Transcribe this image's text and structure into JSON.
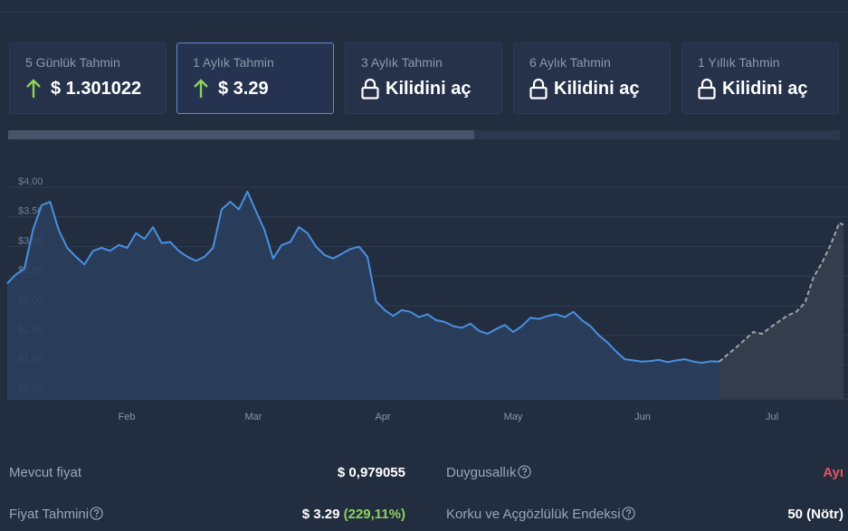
{
  "forecast_cards": [
    {
      "label": "5 Günlük Tahmin",
      "value": "$ 1.301022",
      "icon": "arrow-up-icon"
    },
    {
      "label": "1 Aylık Tahmin",
      "value": "$ 3.29",
      "icon": "arrow-up-icon",
      "active": true
    },
    {
      "label": "3 Aylık Tahmin",
      "value": "Kilidini aç",
      "icon": "lock-icon"
    },
    {
      "label": "6 Aylık Tahmin",
      "value": "Kilidini aç",
      "icon": "lock-icon"
    },
    {
      "label": "1 Yıllık Tahmin",
      "value": "Kilidini aç",
      "icon": "lock-icon"
    }
  ],
  "timeline_progress": 0.56,
  "colors": {
    "background": "#222e40",
    "price_line": "#4a8fe0",
    "forecast_line": "#9aa3ae",
    "up_arrow": "#8ed05c",
    "bearish": "#e4555f",
    "positive": "#8ed05c"
  },
  "chart_data": {
    "type": "line",
    "y_ticks": [
      "$4.00",
      "$3.50",
      "$3.00",
      "$2.50",
      "$2.00",
      "$1.50",
      "$1.00",
      "$0.50"
    ],
    "x_ticks": [
      "Feb",
      "Mar",
      "Apr",
      "May",
      "Jun",
      "Jul"
    ],
    "ylim": [
      0.35,
      4.0
    ],
    "xlim": [
      0,
      195
    ],
    "grid": true,
    "series": [
      {
        "kind": "historical",
        "x": [
          0,
          2,
          4,
          6,
          8,
          10,
          12,
          14,
          16,
          18,
          20,
          22,
          24,
          26,
          28,
          30,
          32,
          34,
          36,
          38,
          40,
          42,
          44,
          46,
          48,
          50,
          52,
          54,
          56,
          58,
          60,
          62,
          64,
          66,
          68,
          70,
          72,
          74,
          76,
          78,
          80,
          82,
          84,
          86,
          88,
          90,
          92,
          94,
          96,
          98,
          100,
          102,
          104,
          106,
          108,
          110,
          112,
          114,
          116,
          118,
          120,
          122,
          124,
          126,
          128,
          130,
          132,
          134,
          136,
          138,
          140,
          142,
          144,
          146,
          148,
          150,
          152,
          154,
          156,
          158,
          160,
          162,
          164,
          166
        ],
        "values": [
          2.3,
          2.45,
          2.55,
          3.2,
          3.62,
          3.68,
          3.2,
          2.9,
          2.75,
          2.62,
          2.85,
          2.9,
          2.85,
          2.95,
          2.9,
          3.15,
          3.05,
          3.25,
          2.98,
          3.0,
          2.85,
          2.75,
          2.68,
          2.75,
          2.9,
          3.55,
          3.68,
          3.55,
          3.85,
          3.52,
          3.2,
          2.72,
          2.95,
          3.0,
          3.25,
          3.15,
          2.92,
          2.78,
          2.72,
          2.8,
          2.88,
          2.92,
          2.75,
          2.0,
          1.85,
          1.75,
          1.85,
          1.82,
          1.73,
          1.78,
          1.68,
          1.65,
          1.58,
          1.55,
          1.62,
          1.5,
          1.45,
          1.53,
          1.6,
          1.48,
          1.58,
          1.72,
          1.7,
          1.75,
          1.78,
          1.73,
          1.82,
          1.68,
          1.58,
          1.42,
          1.3,
          1.15,
          1.02,
          1.0,
          0.98,
          0.99,
          1.01,
          0.97,
          1.0,
          1.02,
          0.98,
          0.96,
          0.985,
          0.979
        ]
      },
      {
        "kind": "forecast",
        "x": [
          166,
          168,
          170,
          172,
          174,
          176,
          178,
          180,
          182,
          184,
          186,
          188,
          190,
          192,
          194,
          195
        ],
        "values": [
          0.979,
          1.1,
          1.22,
          1.35,
          1.48,
          1.45,
          1.56,
          1.66,
          1.76,
          1.82,
          1.97,
          2.4,
          2.65,
          2.95,
          3.32,
          3.29
        ]
      }
    ]
  },
  "stats": {
    "current_price_label": "Mevcut fiyat",
    "current_price_value": "$ 0,979055",
    "forecast_label": "Fiyat Tahmini",
    "forecast_value": "$ 3.29",
    "forecast_change": "(229,11%)",
    "sentiment_label": "Duygusallık",
    "sentiment_value": "Ayı",
    "fear_greed_label": "Korku ve Açgözlülük Endeksi",
    "fear_greed_value": "50 (Nötr)"
  },
  "icons": {
    "help": "question-circle-icon",
    "arrow": "arrow-up-icon",
    "lock": "lock-icon"
  }
}
